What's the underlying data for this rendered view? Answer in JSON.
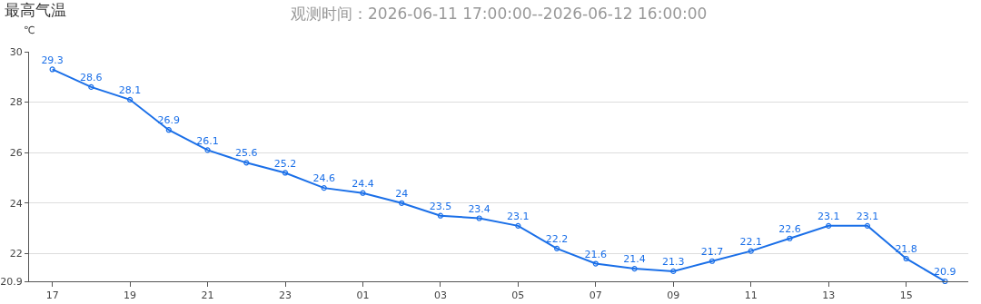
{
  "chart_data": {
    "type": "line",
    "title": "最高气温",
    "subtitle": "观测时间：2026-06-11 17:00:00--2026-06-12 16:00:00",
    "ylabel": "℃",
    "categories": [
      "17",
      null,
      "19",
      null,
      "21",
      null,
      "23",
      null,
      "01",
      null,
      "03",
      null,
      "05",
      null,
      "07",
      null,
      "09",
      null,
      "11",
      null,
      "13",
      null,
      "15",
      null
    ],
    "series": [
      {
        "color": "#1a6fe8",
        "values": [
          29.3,
          28.6,
          28.1,
          26.9,
          26.1,
          25.6,
          25.2,
          24.6,
          24.4,
          24,
          23.5,
          23.4,
          23.1,
          22.2,
          21.6,
          21.4,
          21.3,
          21.7,
          22.1,
          22.6,
          23.1,
          23.1,
          21.8,
          20.9
        ]
      }
    ],
    "ylim": [
      20.9,
      30
    ],
    "yticks": [
      20.9,
      22,
      24,
      26,
      28,
      30
    ],
    "grid": "y",
    "marker": "circle",
    "line_style": "solid",
    "data_labels": true
  }
}
